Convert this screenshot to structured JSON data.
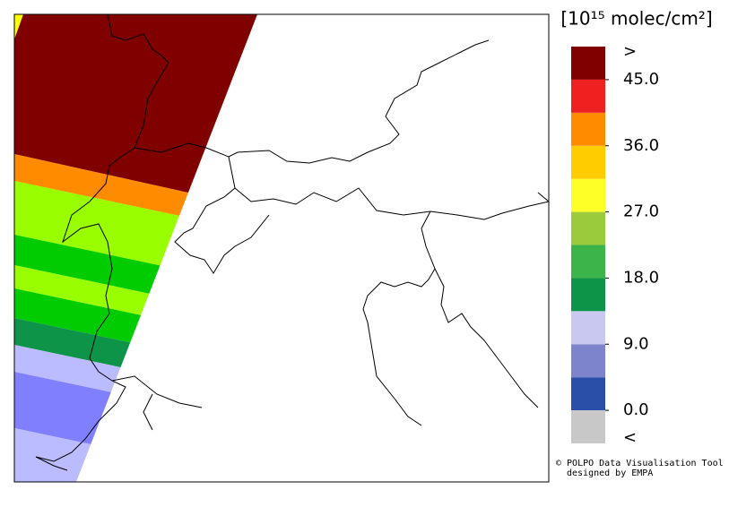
{
  "colorbar": {
    "unit": "[10¹⁵ molec/cm²]",
    "over_label": ">",
    "under_label": "<",
    "ticks": [
      {
        "value": 45,
        "label": "45.0"
      },
      {
        "value": 36,
        "label": "36.0"
      },
      {
        "value": 27,
        "label": "27.0"
      },
      {
        "value": 18,
        "label": "18.0"
      },
      {
        "value": 9,
        "label": "9.0"
      },
      {
        "value": 0,
        "label": "0.0"
      }
    ],
    "under_color": "#c8c8c8",
    "over_color": "#800000",
    "colors": [
      "#2a4fa8",
      "#7d84cc",
      "#c8c8f0",
      "#0e9448",
      "#3cb44a",
      "#9acb3c",
      "#ffff28",
      "#ffcc00",
      "#ff8c00",
      "#ee2020"
    ]
  },
  "credits": {
    "line1": "© POLPO Data Visualisation Tool",
    "line2": "designed by EMPA"
  }
}
